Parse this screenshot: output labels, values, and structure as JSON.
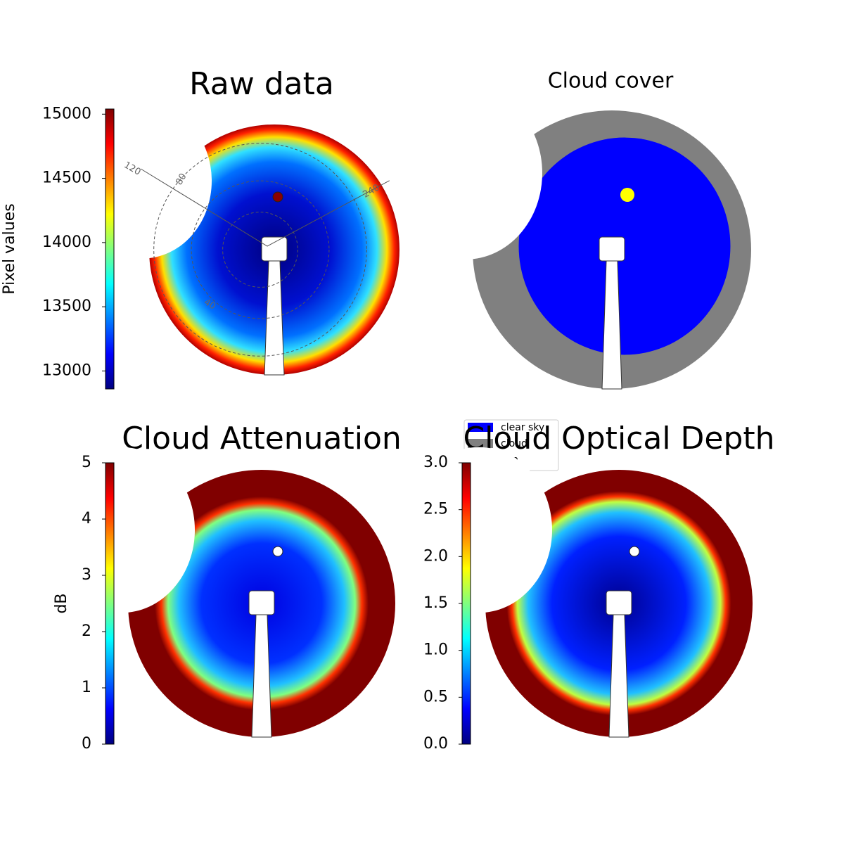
{
  "chart_data": [
    {
      "type": "image",
      "title": "Raw data",
      "colormap": "jet",
      "colorbar_label": "Pixel values",
      "clim": [
        12860,
        15040
      ],
      "cticks": [
        13000,
        13500,
        14000,
        14500,
        15000
      ],
      "polar_labels": [
        "120",
        "80",
        "240",
        "40"
      ]
    },
    {
      "type": "categorical-image",
      "title": "Cloud cover",
      "legend": [
        {
          "name": "clear sky",
          "color": "#0000ff"
        },
        {
          "name": "cloud",
          "color": "#808080"
        },
        {
          "name": "sun",
          "color": "#ffff00"
        }
      ]
    },
    {
      "type": "image",
      "title": "Cloud Attenuation",
      "colormap": "jet",
      "colorbar_label": "dB",
      "clim": [
        0,
        5
      ],
      "cticks": [
        0,
        1,
        2,
        3,
        4,
        5
      ]
    },
    {
      "type": "image",
      "title": "Cloud Optical Depth",
      "colormap": "jet",
      "clim": [
        0,
        3
      ],
      "cticks": [
        {
          "value": 0,
          "label": "0.0"
        },
        {
          "value": 0.5,
          "label": "0.5"
        },
        {
          "value": 1,
          "label": "1.0"
        },
        {
          "value": 1.5,
          "label": "1.5"
        },
        {
          "value": 2,
          "label": "2.0"
        },
        {
          "value": 2.5,
          "label": "2.5"
        },
        {
          "value": 3,
          "label": "3.0"
        }
      ]
    }
  ]
}
